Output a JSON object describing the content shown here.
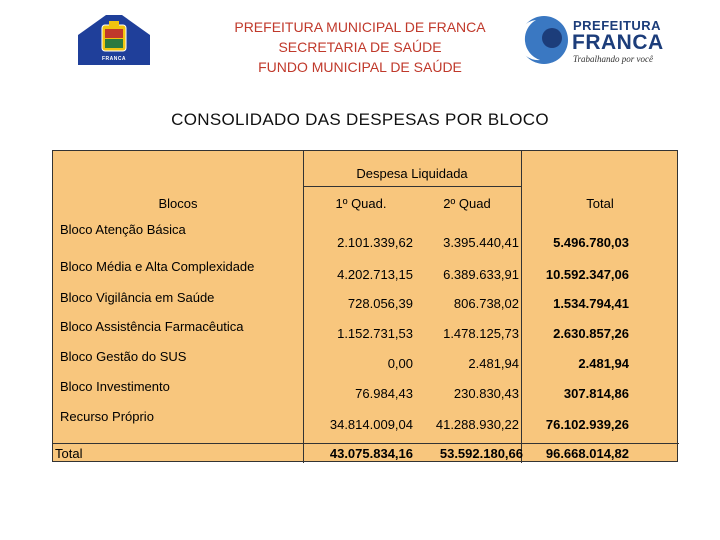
{
  "header": {
    "flag_label": "FRANCA",
    "lines": [
      "PREFEITURA MUNICIPAL DE FRANCA",
      "SECRETARIA DE SAÚDE",
      "FUNDO MUNICIPAL DE SAÚDE"
    ],
    "logo": {
      "word1": "PREFEITURA",
      "word2": "FRANCA",
      "slogan": "Trabalhando por você"
    }
  },
  "title": "CONSOLIDADO DAS DESPESAS POR BLOCO",
  "table": {
    "group_header": "Despesa Liquidada",
    "columns": {
      "blocos": "Blocos",
      "q1": "1º Quad.",
      "q2": "2º Quad",
      "total": "Total"
    },
    "rows": [
      {
        "label": "Bloco Atenção Básica",
        "q1": "2.101.339,62",
        "q2": "3.395.440,41",
        "total": "5.496.780,03"
      },
      {
        "label": "Bloco Média e Alta Complexidade",
        "q1": "4.202.713,15",
        "q2": "6.389.633,91",
        "total": "10.592.347,06"
      },
      {
        "label": "Bloco Vigilância em Saúde",
        "q1": "728.056,39",
        "q2": "806.738,02",
        "total": "1.534.794,41"
      },
      {
        "label": "Bloco Assistência Farmacêutica",
        "q1": "1.152.731,53",
        "q2": "1.478.125,73",
        "total": "2.630.857,26"
      },
      {
        "label": "Bloco Gestão do SUS",
        "q1": "0,00",
        "q2": "2.481,94",
        "total": "2.481,94"
      },
      {
        "label": "Bloco Investimento",
        "q1": "76.984,43",
        "q2": "230.830,43",
        "total": "307.814,86"
      },
      {
        "label": "Recurso Próprio",
        "q1": "34.814.009,04",
        "q2": "41.288.930,22",
        "total": "76.102.939,26"
      }
    ],
    "total_row": {
      "label": "Total",
      "q1": "43.075.834,16",
      "q2": "53.592.180,66",
      "total": "96.668.014,82"
    }
  }
}
